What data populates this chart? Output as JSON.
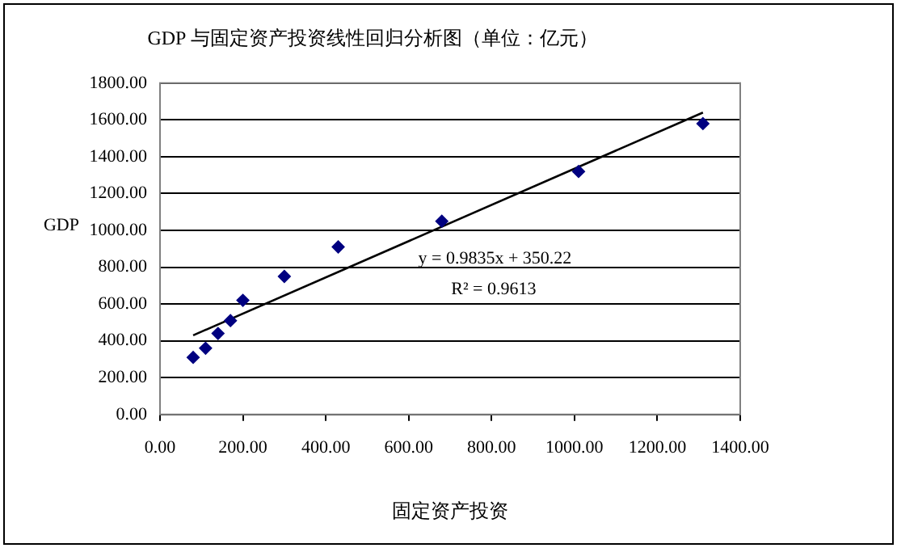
{
  "chart_data": {
    "type": "scatter",
    "title": "GDP 与固定资产投资线性回归分析图（单位：亿元）",
    "xlabel": "固定资产投资",
    "ylabel": "GDP",
    "series": [
      {
        "color": "#000080",
        "marker": "diamond",
        "x": [
          80,
          110,
          140,
          170,
          200,
          300,
          430,
          680,
          1010,
          1310
        ],
        "values": [
          310,
          360,
          440,
          510,
          620,
          750,
          910,
          1050,
          1320,
          1580
        ]
      },
      {
        "type": "line",
        "marker": "none",
        "color": "#000000",
        "x": [
          80,
          1310
        ],
        "values": [
          430,
          1640
        ]
      }
    ],
    "xlim": [
      0,
      1400
    ],
    "xticks": [
      {
        "value": 0,
        "label": "0.00"
      },
      {
        "value": 200,
        "label": "200.00"
      },
      {
        "value": 400,
        "label": "400.00"
      },
      {
        "value": 600,
        "label": "600.00"
      },
      {
        "value": 800,
        "label": "800.00"
      },
      {
        "value": 1000,
        "label": "1000.00"
      },
      {
        "value": 1200,
        "label": "1200.00"
      },
      {
        "value": 1400,
        "label": "1400.00"
      }
    ],
    "ylim": [
      0,
      1800
    ],
    "yticks": [
      {
        "value": 0,
        "label": "0.00"
      },
      {
        "value": 200,
        "label": "200.00"
      },
      {
        "value": 400,
        "label": "400.00"
      },
      {
        "value": 600,
        "label": "600.00"
      },
      {
        "value": 800,
        "label": "800.00"
      },
      {
        "value": 1000,
        "label": "1000.00"
      },
      {
        "value": 1200,
        "label": "1200.00"
      },
      {
        "value": 1400,
        "label": "1400.00"
      },
      {
        "value": 1600,
        "label": "1600.00"
      },
      {
        "value": 1800,
        "label": "1800.00"
      }
    ],
    "annotations": [
      "y = 0.9835x + 350.22",
      "R² = 0.9613"
    ],
    "grid": "y",
    "legend": false,
    "line_style": "solid"
  }
}
